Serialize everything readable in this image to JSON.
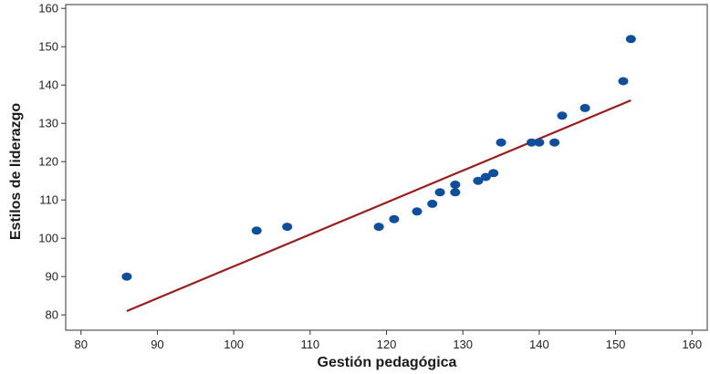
{
  "chart_data": {
    "type": "scatter",
    "title": "",
    "xlabel": "Gestión pedagógica",
    "ylabel": "Estilos de liderazgo",
    "xlim": [
      78,
      162
    ],
    "ylim": [
      76,
      161
    ],
    "xticks": [
      80,
      90,
      100,
      110,
      120,
      130,
      140,
      150,
      160
    ],
    "yticks": [
      80,
      90,
      100,
      110,
      120,
      130,
      140,
      150,
      160
    ],
    "grid": false,
    "legend": "none",
    "points": [
      {
        "x": 86,
        "y": 90
      },
      {
        "x": 103,
        "y": 102
      },
      {
        "x": 107,
        "y": 103
      },
      {
        "x": 119,
        "y": 103
      },
      {
        "x": 121,
        "y": 105
      },
      {
        "x": 124,
        "y": 107
      },
      {
        "x": 126,
        "y": 109
      },
      {
        "x": 127,
        "y": 112
      },
      {
        "x": 129,
        "y": 112
      },
      {
        "x": 129,
        "y": 114
      },
      {
        "x": 132,
        "y": 115
      },
      {
        "x": 133,
        "y": 116
      },
      {
        "x": 134,
        "y": 117
      },
      {
        "x": 135,
        "y": 125
      },
      {
        "x": 139,
        "y": 125
      },
      {
        "x": 140,
        "y": 125
      },
      {
        "x": 142,
        "y": 125
      },
      {
        "x": 143,
        "y": 132
      },
      {
        "x": 146,
        "y": 134
      },
      {
        "x": 151,
        "y": 141
      },
      {
        "x": 152,
        "y": 152
      }
    ],
    "fit_line": {
      "x": [
        86,
        152
      ],
      "y": [
        81,
        136
      ]
    },
    "colors": {
      "points": "#0d4f9c",
      "fit_line": "#9b1c1c",
      "axis": "#333333"
    }
  }
}
